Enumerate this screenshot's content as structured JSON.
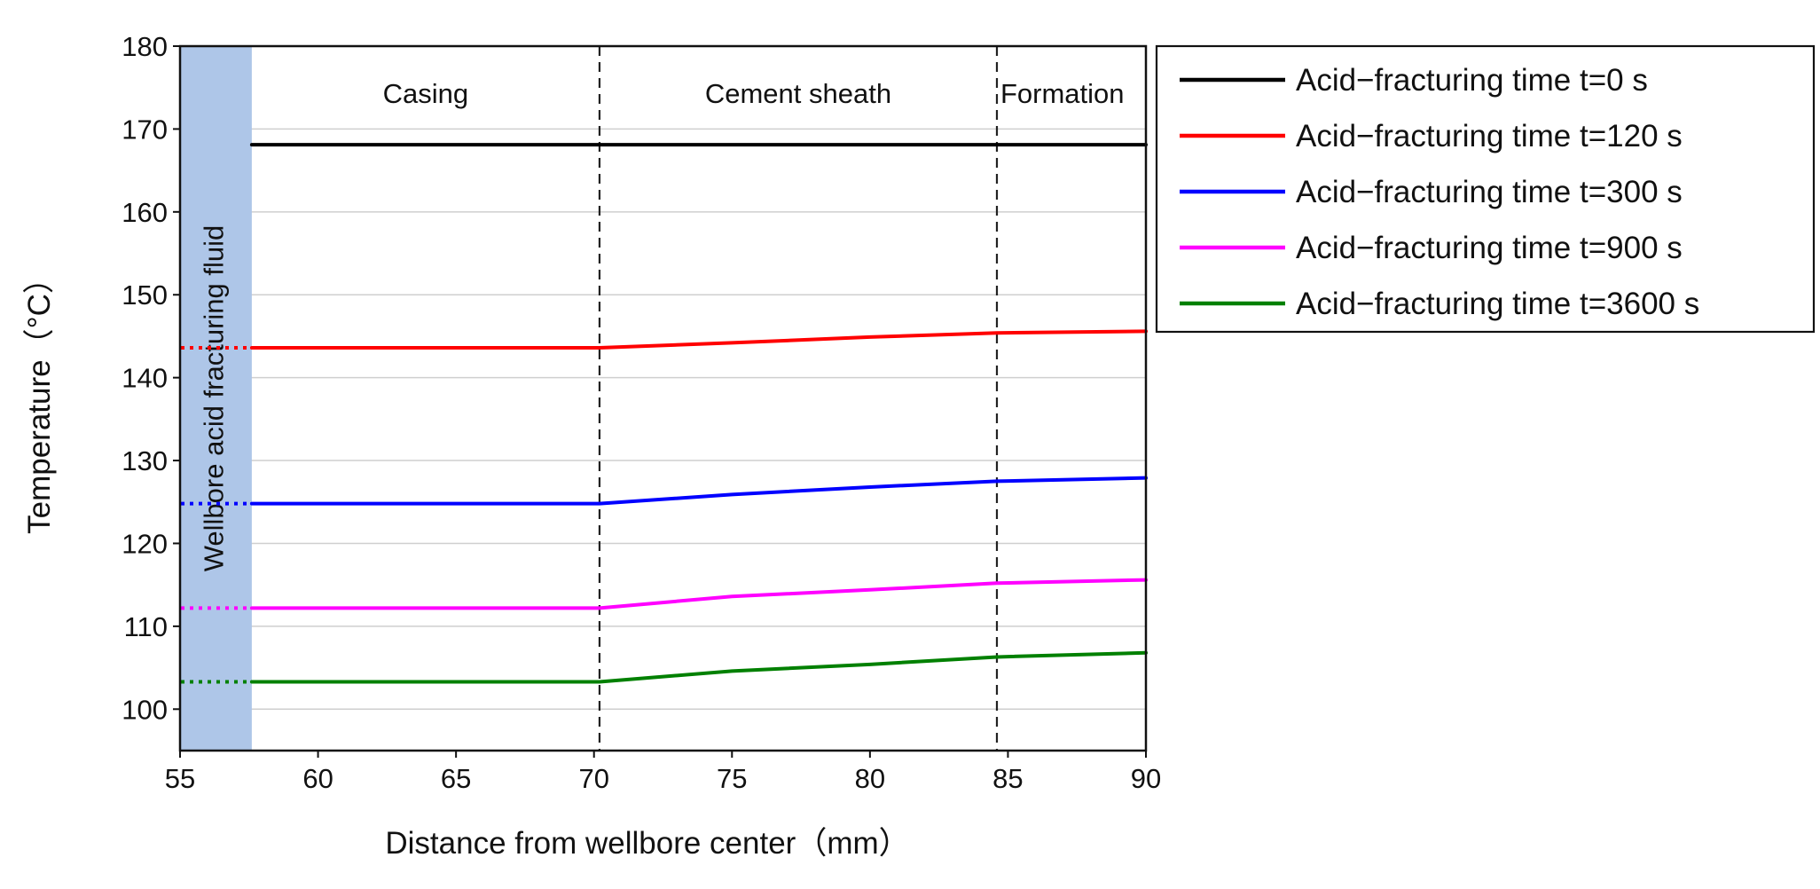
{
  "chart_data": {
    "type": "line",
    "title": "",
    "xlabel": "Distance from wellbore center（mm）",
    "ylabel": "Temperature（°C）",
    "xlim": [
      55,
      90
    ],
    "ylim": [
      95,
      180
    ],
    "xticks": [
      55,
      60,
      65,
      70,
      75,
      80,
      85,
      90
    ],
    "yticks": [
      100,
      110,
      120,
      130,
      140,
      150,
      160,
      170,
      180
    ],
    "grid": true,
    "legend_position": "outside-right-top",
    "fluid_region": {
      "x_range": [
        55,
        57.6
      ],
      "color": "#aec6e8",
      "label": "Wellbore acid fracturing fluid"
    },
    "zones": [
      {
        "label": "Casing",
        "x_start": 57.6,
        "x_end": 70.2
      },
      {
        "label": "Cement sheath",
        "x_start": 70.2,
        "x_end": 84.6
      },
      {
        "label": "Formation",
        "x_start": 84.6,
        "x_end": 90
      }
    ],
    "boundaries": [
      70.2,
      84.6
    ],
    "series": [
      {
        "name": "Acid−fracturing time t=0 s",
        "color": "#000000",
        "fluid_value": null,
        "x": [
          57.6,
          70.2,
          84.6,
          90
        ],
        "y": [
          168.1,
          168.1,
          168.1,
          168.1
        ]
      },
      {
        "name": "Acid−fracturing time t=120 s",
        "color": "#ff0000",
        "fluid_value": 143.6,
        "x": [
          57.6,
          70.2,
          75,
          80,
          84.6,
          90
        ],
        "y": [
          143.6,
          143.6,
          144.2,
          144.9,
          145.4,
          145.6
        ]
      },
      {
        "name": "Acid−fracturing time t=300 s",
        "color": "#0000ff",
        "fluid_value": 124.8,
        "x": [
          57.6,
          70.2,
          75,
          80,
          84.6,
          90
        ],
        "y": [
          124.8,
          124.8,
          125.9,
          126.8,
          127.5,
          127.9
        ]
      },
      {
        "name": "Acid−fracturing time t=900 s",
        "color": "#ff00ff",
        "fluid_value": 112.2,
        "x": [
          57.6,
          70.2,
          75,
          80,
          84.6,
          90
        ],
        "y": [
          112.2,
          112.2,
          113.6,
          114.4,
          115.2,
          115.6
        ]
      },
      {
        "name": "Acid−fracturing time t=3600 s",
        "color": "#008000",
        "fluid_value": 103.3,
        "x": [
          57.6,
          70.2,
          75,
          80,
          84.6,
          90
        ],
        "y": [
          103.3,
          103.3,
          104.6,
          105.4,
          106.3,
          106.8
        ]
      }
    ]
  }
}
